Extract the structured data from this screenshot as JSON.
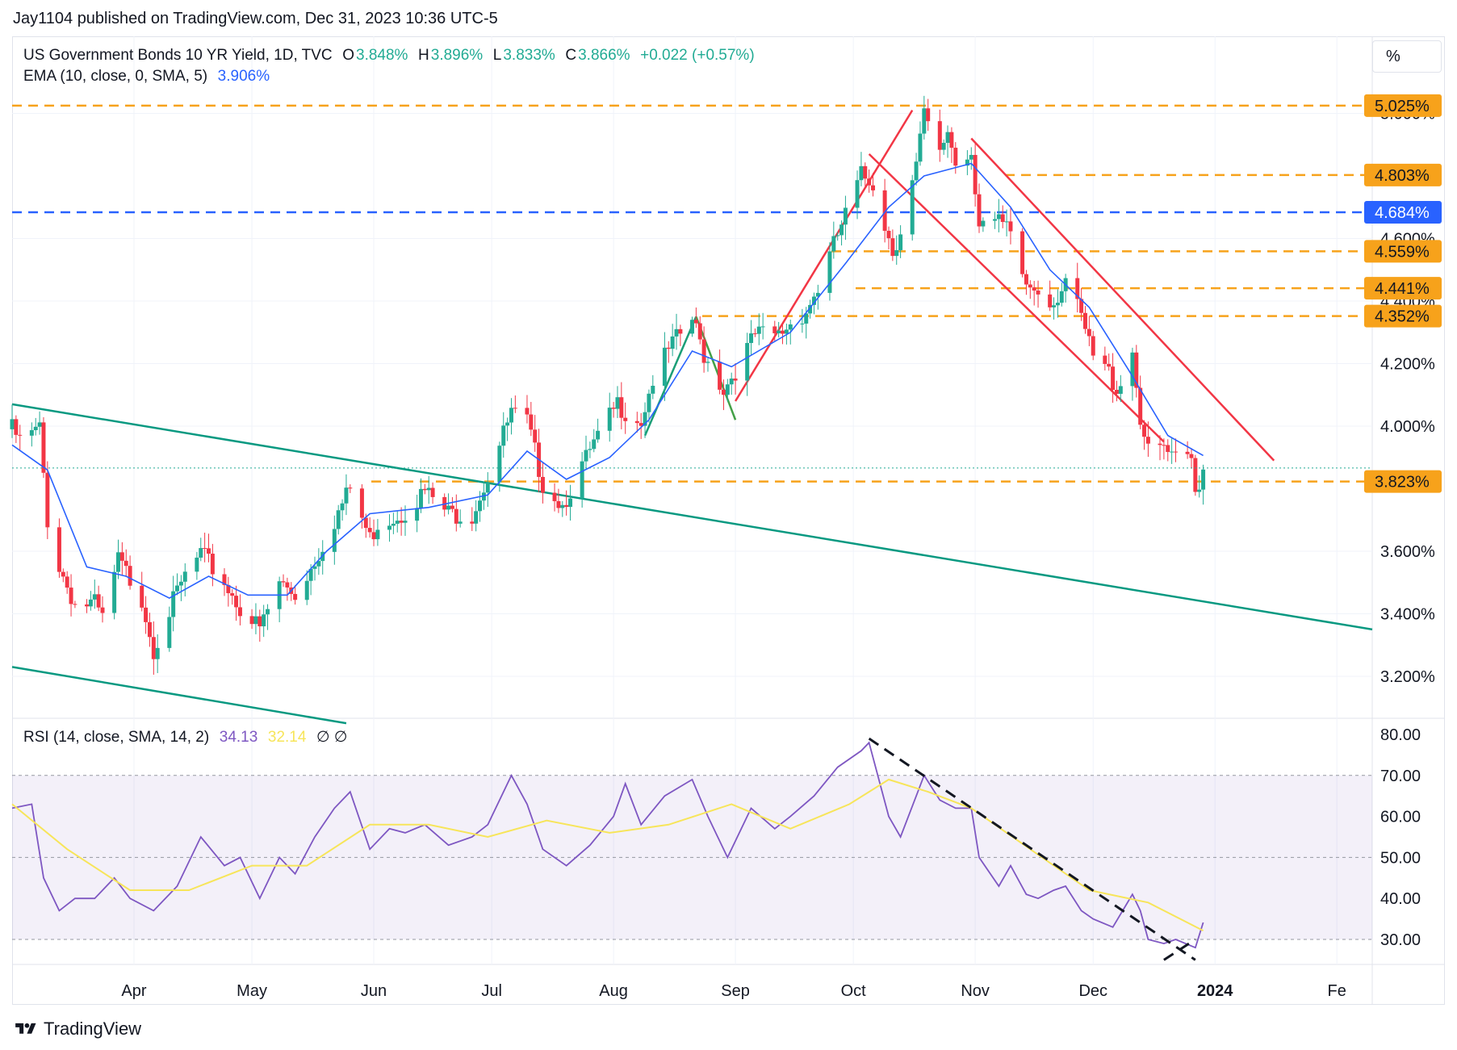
{
  "header": {
    "publish_line": "Jay1104 published on TradingView.com, Dec 31, 2023 10:36 UTC-5"
  },
  "legend": {
    "symbol": "US Government Bonds 10 YR Yield, 1D, TVC",
    "o_label": "O",
    "o_value": "3.848%",
    "h_label": "H",
    "h_value": "3.896%",
    "l_label": "L",
    "l_value": "3.833%",
    "c_label": "C",
    "c_value": "3.866%",
    "change": "+0.022 (+0.57%)",
    "ema_label": "EMA (10, close, 0, SMA, 5)",
    "ema_value": "3.906%",
    "rsi_label": "RSI (14, close, SMA, 14, 2)",
    "rsi_value": "34.13",
    "rsi_ma_value": "32.14",
    "rsi_extra": "∅  ∅"
  },
  "scale_button": "%",
  "footer": {
    "brand": "TradingView"
  },
  "colors": {
    "up": "#22ab94",
    "down": "#f23645",
    "ema": "#2962ff",
    "orange": "#f7a21b",
    "blue_level": "#2962ff",
    "green_line": "#089981",
    "red_channel": "#f23645",
    "rsi": "#7e57c2",
    "rsi_ma": "#f7e55a"
  },
  "chart_data": [
    {
      "type": "candlestick",
      "title": "US Government Bonds 10 YR Yield, 1D, TVC",
      "ylabel": "%",
      "ylim": [
        3.12,
        5.13
      ],
      "x_ticks": [
        "Apr",
        "May",
        "Jun",
        "Jul",
        "Aug",
        "Sep",
        "Oct",
        "Nov",
        "Dec",
        "2024",
        "Fe"
      ],
      "y_ticks": [
        "3.200%",
        "3.400%",
        "3.600%",
        "4.000%",
        "4.200%",
        "4.400%",
        "4.600%",
        "5.000%"
      ],
      "price_levels": [
        {
          "value": 5.025,
          "label": "5.025%",
          "kind": "resistance"
        },
        {
          "value": 4.803,
          "label": "4.803%",
          "kind": "resistance"
        },
        {
          "value": 4.684,
          "label": "4.684%",
          "kind": "key-level"
        },
        {
          "value": 4.559,
          "label": "4.559%",
          "kind": "resistance"
        },
        {
          "value": 4.441,
          "label": "4.441%",
          "kind": "resistance"
        },
        {
          "value": 4.352,
          "label": "4.352%",
          "kind": "resistance"
        },
        {
          "value": 3.823,
          "label": "3.823%",
          "kind": "support"
        }
      ],
      "last_close": 3.866,
      "closes_path": [
        [
          "2023-03-01",
          3.99
        ],
        [
          "2023-03-03",
          3.95
        ],
        [
          "2023-03-08",
          3.99
        ],
        [
          "2023-03-10",
          3.7
        ],
        [
          "2023-03-13",
          3.55
        ],
        [
          "2023-03-17",
          3.43
        ],
        [
          "2023-03-22",
          3.43
        ],
        [
          "2023-03-24",
          3.38
        ],
        [
          "2023-03-28",
          3.57
        ],
        [
          "2023-04-03",
          3.45
        ],
        [
          "2023-04-06",
          3.29
        ],
        [
          "2023-04-10",
          3.41
        ],
        [
          "2023-04-14",
          3.52
        ],
        [
          "2023-04-18",
          3.59
        ],
        [
          "2023-04-24",
          3.5
        ],
        [
          "2023-04-28",
          3.42
        ],
        [
          "2023-05-03",
          3.35
        ],
        [
          "2023-05-08",
          3.5
        ],
        [
          "2023-05-12",
          3.46
        ],
        [
          "2023-05-17",
          3.57
        ],
        [
          "2023-05-22",
          3.7
        ],
        [
          "2023-05-26",
          3.8
        ],
        [
          "2023-05-31",
          3.64
        ],
        [
          "2023-06-02",
          3.69
        ],
        [
          "2023-06-08",
          3.72
        ],
        [
          "2023-06-14",
          3.79
        ],
        [
          "2023-06-20",
          3.72
        ],
        [
          "2023-06-26",
          3.72
        ],
        [
          "2023-06-30",
          3.84
        ],
        [
          "2023-07-06",
          4.04
        ],
        [
          "2023-07-10",
          4.01
        ],
        [
          "2023-07-14",
          3.82
        ],
        [
          "2023-07-19",
          3.75
        ],
        [
          "2023-07-24",
          3.87
        ],
        [
          "2023-07-28",
          3.96
        ],
        [
          "2023-08-02",
          4.07
        ],
        [
          "2023-08-04",
          4.05
        ],
        [
          "2023-08-08",
          4.02
        ],
        [
          "2023-08-11",
          4.15
        ],
        [
          "2023-08-16",
          4.26
        ],
        [
          "2023-08-21",
          4.34
        ],
        [
          "2023-08-24",
          4.23
        ],
        [
          "2023-08-29",
          4.12
        ],
        [
          "2023-09-01",
          4.18
        ],
        [
          "2023-09-06",
          4.29
        ],
        [
          "2023-09-12",
          4.29
        ],
        [
          "2023-09-15",
          4.33
        ],
        [
          "2023-09-19",
          4.37
        ],
        [
          "2023-09-22",
          4.44
        ],
        [
          "2023-09-27",
          4.61
        ],
        [
          "2023-10-03",
          4.8
        ],
        [
          "2023-10-06",
          4.78
        ],
        [
          "2023-10-11",
          4.56
        ],
        [
          "2023-10-13",
          4.63
        ],
        [
          "2023-10-17",
          4.83
        ],
        [
          "2023-10-19",
          4.99
        ],
        [
          "2023-10-23",
          4.86
        ],
        [
          "2023-10-25",
          4.95
        ],
        [
          "2023-10-27",
          4.84
        ],
        [
          "2023-10-31",
          4.88
        ],
        [
          "2023-11-02",
          4.66
        ],
        [
          "2023-11-06",
          4.65
        ],
        [
          "2023-11-09",
          4.63
        ],
        [
          "2023-11-14",
          4.45
        ],
        [
          "2023-11-17",
          4.44
        ],
        [
          "2023-11-21",
          4.4
        ],
        [
          "2023-11-24",
          4.47
        ],
        [
          "2023-11-28",
          4.34
        ],
        [
          "2023-12-01",
          4.22
        ],
        [
          "2023-12-05",
          4.17
        ],
        [
          "2023-12-07",
          4.12
        ],
        [
          "2023-12-11",
          4.24
        ],
        [
          "2023-12-13",
          4.03
        ],
        [
          "2023-12-15",
          3.91
        ],
        [
          "2023-12-19",
          3.93
        ],
        [
          "2023-12-21",
          3.89
        ],
        [
          "2023-12-26",
          3.89
        ],
        [
          "2023-12-27",
          3.79
        ],
        [
          "2023-12-29",
          3.866
        ]
      ],
      "ema_path": [
        [
          "2023-03-01",
          3.94
        ],
        [
          "2023-03-10",
          3.86
        ],
        [
          "2023-03-20",
          3.55
        ],
        [
          "2023-03-30",
          3.52
        ],
        [
          "2023-04-10",
          3.45
        ],
        [
          "2023-04-20",
          3.52
        ],
        [
          "2023-04-30",
          3.46
        ],
        [
          "2023-05-10",
          3.46
        ],
        [
          "2023-05-20",
          3.6
        ],
        [
          "2023-05-31",
          3.72
        ],
        [
          "2023-06-15",
          3.74
        ],
        [
          "2023-06-30",
          3.78
        ],
        [
          "2023-07-10",
          3.92
        ],
        [
          "2023-07-20",
          3.83
        ],
        [
          "2023-07-31",
          3.9
        ],
        [
          "2023-08-10",
          4.02
        ],
        [
          "2023-08-21",
          4.24
        ],
        [
          "2023-08-31",
          4.19
        ],
        [
          "2023-09-15",
          4.3
        ],
        [
          "2023-09-29",
          4.52
        ],
        [
          "2023-10-10",
          4.7
        ],
        [
          "2023-10-19",
          4.8
        ],
        [
          "2023-10-31",
          4.84
        ],
        [
          "2023-11-10",
          4.7
        ],
        [
          "2023-11-20",
          4.5
        ],
        [
          "2023-11-30",
          4.38
        ],
        [
          "2023-12-10",
          4.18
        ],
        [
          "2023-12-20",
          3.97
        ],
        [
          "2023-12-29",
          3.906
        ]
      ],
      "trend_lines": [
        {
          "kind": "green-long",
          "from": [
            "2023-03-01",
            4.07
          ],
          "to": [
            "2024-02-10",
            3.35
          ]
        },
        {
          "kind": "green-lower",
          "from": [
            "2023-03-01",
            3.23
          ],
          "to": [
            "2023-05-25",
            3.05
          ]
        },
        {
          "kind": "red-up",
          "from": [
            "2023-09-01",
            4.08
          ],
          "to": [
            "2023-10-16",
            5.01
          ]
        },
        {
          "kind": "red-channel-top",
          "from": [
            "2023-10-31",
            4.92
          ],
          "to": [
            "2024-01-16",
            3.89
          ]
        },
        {
          "kind": "red-channel-bottom",
          "from": [
            "2023-10-05",
            4.87
          ],
          "to": [
            "2023-12-19",
            3.95
          ]
        },
        {
          "kind": "green-flag-a",
          "from": [
            "2023-08-09",
            3.97
          ],
          "to": [
            "2023-08-22",
            4.35
          ]
        },
        {
          "kind": "green-flag-b",
          "from": [
            "2023-08-22",
            4.35
          ],
          "to": [
            "2023-09-01",
            4.02
          ]
        }
      ]
    },
    {
      "type": "line",
      "title": "RSI (14, close, SMA, 14, 2)",
      "ylim": [
        24,
        82
      ],
      "y_ticks": [
        "80.00",
        "70.00",
        "60.00",
        "50.00",
        "40.00",
        "30.00"
      ],
      "band": [
        30,
        70
      ],
      "series": [
        {
          "name": "RSI",
          "points": [
            [
              "2023-03-01",
              62
            ],
            [
              "2023-03-06",
              63
            ],
            [
              "2023-03-09",
              45
            ],
            [
              "2023-03-13",
              37
            ],
            [
              "2023-03-17",
              40
            ],
            [
              "2023-03-22",
              40
            ],
            [
              "2023-03-27",
              45
            ],
            [
              "2023-03-31",
              40
            ],
            [
              "2023-04-06",
              37
            ],
            [
              "2023-04-12",
              43
            ],
            [
              "2023-04-18",
              55
            ],
            [
              "2023-04-24",
              48
            ],
            [
              "2023-04-28",
              50
            ],
            [
              "2023-05-03",
              40
            ],
            [
              "2023-05-08",
              50
            ],
            [
              "2023-05-12",
              46
            ],
            [
              "2023-05-17",
              55
            ],
            [
              "2023-05-22",
              62
            ],
            [
              "2023-05-26",
              66
            ],
            [
              "2023-05-31",
              52
            ],
            [
              "2023-06-05",
              57
            ],
            [
              "2023-06-09",
              56
            ],
            [
              "2023-06-14",
              58
            ],
            [
              "2023-06-20",
              53
            ],
            [
              "2023-06-26",
              55
            ],
            [
              "2023-06-30",
              58
            ],
            [
              "2023-07-06",
              70
            ],
            [
              "2023-07-10",
              63
            ],
            [
              "2023-07-14",
              52
            ],
            [
              "2023-07-20",
              48
            ],
            [
              "2023-07-26",
              53
            ],
            [
              "2023-08-01",
              60
            ],
            [
              "2023-08-04",
              68
            ],
            [
              "2023-08-08",
              58
            ],
            [
              "2023-08-14",
              65
            ],
            [
              "2023-08-21",
              69
            ],
            [
              "2023-08-25",
              60
            ],
            [
              "2023-08-30",
              50
            ],
            [
              "2023-09-05",
              62
            ],
            [
              "2023-09-11",
              57
            ],
            [
              "2023-09-15",
              60
            ],
            [
              "2023-09-21",
              65
            ],
            [
              "2023-09-27",
              72
            ],
            [
              "2023-10-03",
              76
            ],
            [
              "2023-10-05",
              78
            ],
            [
              "2023-10-10",
              60
            ],
            [
              "2023-10-13",
              55
            ],
            [
              "2023-10-17",
              65
            ],
            [
              "2023-10-19",
              70
            ],
            [
              "2023-10-23",
              64
            ],
            [
              "2023-10-27",
              62
            ],
            [
              "2023-10-31",
              62
            ],
            [
              "2023-11-02",
              50
            ],
            [
              "2023-11-07",
              43
            ],
            [
              "2023-11-10",
              48
            ],
            [
              "2023-11-14",
              41
            ],
            [
              "2023-11-17",
              40
            ],
            [
              "2023-11-21",
              42
            ],
            [
              "2023-11-24",
              43
            ],
            [
              "2023-11-28",
              37
            ],
            [
              "2023-12-01",
              35
            ],
            [
              "2023-12-06",
              33
            ],
            [
              "2023-12-11",
              41
            ],
            [
              "2023-12-13",
              37
            ],
            [
              "2023-12-15",
              30
            ],
            [
              "2023-12-19",
              29
            ],
            [
              "2023-12-22",
              30
            ],
            [
              "2023-12-27",
              28
            ],
            [
              "2023-12-29",
              34.13
            ]
          ]
        },
        {
          "name": "RSI-based MA",
          "points": [
            [
              "2023-03-01",
              63
            ],
            [
              "2023-03-15",
              52
            ],
            [
              "2023-03-31",
              42
            ],
            [
              "2023-04-15",
              42
            ],
            [
              "2023-05-01",
              48
            ],
            [
              "2023-05-15",
              48
            ],
            [
              "2023-05-31",
              58
            ],
            [
              "2023-06-15",
              58
            ],
            [
              "2023-06-30",
              55
            ],
            [
              "2023-07-15",
              59
            ],
            [
              "2023-07-31",
              56
            ],
            [
              "2023-08-15",
              58
            ],
            [
              "2023-08-31",
              63
            ],
            [
              "2023-09-15",
              57
            ],
            [
              "2023-09-30",
              63
            ],
            [
              "2023-10-10",
              69
            ],
            [
              "2023-10-20",
              66
            ],
            [
              "2023-10-31",
              62
            ],
            [
              "2023-11-15",
              52
            ],
            [
              "2023-11-30",
              42
            ],
            [
              "2023-12-15",
              39
            ],
            [
              "2023-12-29",
              32.14
            ]
          ]
        }
      ],
      "trend_lines": [
        {
          "kind": "divergence",
          "from": [
            "2023-10-05",
            79
          ],
          "to": [
            "2023-12-27",
            25
          ]
        },
        {
          "kind": "divergence-end",
          "from": [
            "2023-12-19",
            25
          ],
          "to": [
            "2023-12-27",
            30
          ]
        }
      ]
    }
  ]
}
